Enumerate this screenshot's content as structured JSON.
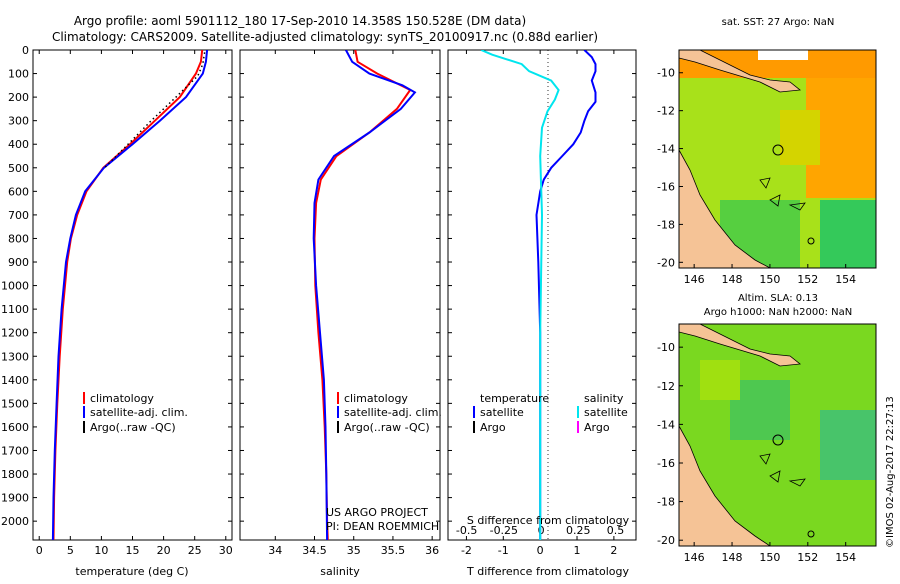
{
  "header": {
    "line1": "Argo profile: aoml 5901112_180 17-Sep-2010 14.358S 150.528E (DM data)",
    "line2": "Climatology: CARS2009. Satellite-adjusted climatology: synTS_20100917.nc (0.88d earlier)"
  },
  "credits": {
    "project": "US ARGO PROJECT",
    "pi": "PI: DEAN ROEMMICH",
    "watermark": "©IMOS 02-Aug-2017 22:27:13"
  },
  "colors": {
    "climatology": "#ff0000",
    "satellite": "#0000ff",
    "argo": "#000000",
    "salinity_satellite": "#00e5ee",
    "salinity_argo": "#ff00ff",
    "land": "#f5c396",
    "sst_warm": "#ff9a00",
    "sst_mid": "#9ae010",
    "sla_green": "#7ad820"
  },
  "depth_ticks": [
    "0",
    "100",
    "200",
    "300",
    "400",
    "500",
    "600",
    "700",
    "800",
    "900",
    "1000",
    "1100",
    "1200",
    "1300",
    "1400",
    "1500",
    "1600",
    "1700",
    "1800",
    "1900",
    "2000"
  ],
  "chart_data": [
    {
      "type": "line",
      "id": "temperature",
      "xlabel": "temperature (deg C)",
      "ylabel": "",
      "xlim": [
        -1,
        31
      ],
      "ylim": [
        2080,
        0
      ],
      "xticks": [
        0,
        5,
        10,
        15,
        20,
        25,
        30
      ],
      "xtick_labels": [
        "0",
        "5",
        "10",
        "15",
        "20",
        "25",
        "30"
      ],
      "legend": [
        {
          "label": "climatology",
          "color": "#ff0000"
        },
        {
          "label": "satellite-adj. clim.",
          "color": "#0000ff"
        },
        {
          "label": "Argo(..raw -QC)",
          "color": "#000000"
        }
      ],
      "series": [
        {
          "name": "climatology",
          "color": "#ff0000",
          "x": [
            26.2,
            26.0,
            25.2,
            22.6,
            18.6,
            14.6,
            10.3,
            7.6,
            6.1,
            5.1,
            4.5,
            3.8,
            3.3,
            2.9,
            2.6,
            2.4,
            2.3
          ],
          "y": [
            0,
            50,
            100,
            200,
            300,
            400,
            500,
            600,
            700,
            800,
            900,
            1100,
            1300,
            1500,
            1700,
            1900,
            2080
          ]
        },
        {
          "name": "satellite-adj. clim.",
          "color": "#0000ff",
          "x": [
            27.0,
            26.8,
            26.3,
            23.6,
            19.4,
            15.0,
            10.4,
            7.4,
            5.9,
            5.0,
            4.3,
            3.6,
            3.1,
            2.8,
            2.5,
            2.3,
            2.2
          ],
          "y": [
            0,
            50,
            100,
            200,
            300,
            400,
            500,
            600,
            700,
            800,
            900,
            1100,
            1300,
            1500,
            1700,
            1900,
            2080
          ]
        },
        {
          "name": "Argo(..raw -QC)",
          "color": "#000000",
          "dotted": true,
          "x": [
            26.6,
            26.3,
            25.5,
            22.0,
            18.0,
            14.3,
            10.5
          ],
          "y": [
            10,
            60,
            110,
            200,
            300,
            400,
            500
          ]
        }
      ]
    },
    {
      "type": "line",
      "id": "salinity",
      "xlabel": "salinity",
      "ylabel": "",
      "xlim": [
        33.55,
        36.1
      ],
      "ylim": [
        2080,
        0
      ],
      "xticks": [
        34,
        34.5,
        35,
        35.5,
        36
      ],
      "xtick_labels": [
        "34",
        "34.5",
        "35",
        "35.5",
        "36"
      ],
      "legend": [
        {
          "label": "climatology",
          "color": "#ff0000"
        },
        {
          "label": "satellite-adj. clim.",
          "color": "#0000ff"
        },
        {
          "label": "Argo(..raw -QC)",
          "color": "#000000"
        }
      ],
      "series": [
        {
          "name": "climatology",
          "color": "#ff0000",
          "x": [
            35.02,
            35.05,
            35.3,
            35.72,
            35.55,
            35.2,
            34.78,
            34.58,
            34.52,
            34.5,
            34.51,
            34.55,
            34.6,
            34.63,
            34.65,
            34.66,
            34.67
          ],
          "y": [
            0,
            50,
            100,
            170,
            250,
            350,
            450,
            550,
            650,
            800,
            1000,
            1200,
            1400,
            1600,
            1800,
            2000,
            2080
          ]
        },
        {
          "name": "satellite-adj. clim.",
          "color": "#0000ff",
          "x": [
            34.9,
            34.98,
            35.2,
            35.62,
            35.78,
            35.6,
            35.2,
            34.75,
            34.55,
            34.5,
            34.49,
            34.52,
            34.57,
            34.62,
            34.64,
            34.65,
            34.66
          ],
          "y": [
            0,
            50,
            100,
            150,
            180,
            250,
            350,
            450,
            550,
            650,
            800,
            1000,
            1200,
            1400,
            1600,
            1800,
            2080
          ]
        }
      ]
    },
    {
      "type": "line",
      "id": "difference",
      "xlabel": "T difference from climatology",
      "x2label": "S difference from climatology",
      "xlim": [
        -2.5,
        2.6
      ],
      "ylim": [
        2080,
        0
      ],
      "xticks": [
        -2,
        -1,
        0,
        1,
        2
      ],
      "xtick_labels": [
        "-2",
        "-1",
        "0",
        "1",
        "2"
      ],
      "x2ticks": [
        -0.5,
        -0.25,
        0,
        0.25,
        0.5
      ],
      "x2tick_labels": [
        "-0.5",
        "-0.25",
        "0",
        "0.25",
        "0.5"
      ],
      "legend_temperature_title": "temperature",
      "legend_salinity_title": "salinity",
      "legend": [
        {
          "label": "satellite",
          "color": "#0000ff",
          "group": "temperature"
        },
        {
          "label": "Argo",
          "color": "#000000",
          "group": "temperature"
        },
        {
          "label": "satellite",
          "color": "#00e5ee",
          "group": "salinity"
        },
        {
          "label": "Argo",
          "color": "#ff00ff",
          "group": "salinity"
        }
      ],
      "series": [
        {
          "name": "temperature satellite",
          "color": "#0000ff",
          "x": [
            1.2,
            1.4,
            1.5,
            1.5,
            1.4,
            1.5,
            1.5,
            1.3,
            1.2,
            1.1,
            0.9,
            0.6,
            0.3,
            0.1,
            0.0,
            -0.1,
            -0.05,
            0.0,
            0.0
          ],
          "y": [
            0,
            30,
            60,
            90,
            130,
            180,
            220,
            260,
            300,
            350,
            400,
            450,
            500,
            550,
            600,
            700,
            900,
            1200,
            2080
          ]
        },
        {
          "name": "salinity satellite",
          "color": "#00e5ee",
          "x": [
            -1.6,
            -1.3,
            -0.9,
            -0.5,
            -0.3,
            0.3,
            0.5,
            0.4,
            0.2,
            0.05,
            0.0,
            0.05,
            0.0,
            0.0
          ],
          "y": [
            0,
            20,
            40,
            60,
            90,
            130,
            170,
            210,
            260,
            330,
            450,
            700,
            1200,
            2080
          ]
        }
      ]
    },
    {
      "type": "heatmap",
      "id": "sst_map",
      "title": "sat. SST: 27 Argo: NaN",
      "xlim": [
        145.2,
        155.6
      ],
      "ylim": [
        -20.3,
        -8.8
      ],
      "xticks": [
        146,
        148,
        150,
        152,
        154
      ],
      "xtick_labels": [
        "146",
        "148",
        "150",
        "152",
        "154"
      ],
      "yticks": [
        -10,
        -12,
        -14,
        -16,
        -18,
        -20
      ],
      "ytick_labels": [
        "-10",
        "-12",
        "-14",
        "-16",
        "-18",
        "-20"
      ],
      "markers": [
        {
          "lon": 150.528,
          "lat": -14.358,
          "kind": "profile"
        },
        {
          "lon": 152.2,
          "lat": -19.1,
          "kind": "small"
        }
      ]
    },
    {
      "type": "heatmap",
      "id": "sla_map",
      "title": "Altim. SLA: 0.13",
      "subtitle": "Argo h1000: NaN h2000: NaN",
      "xlim": [
        145.2,
        155.6
      ],
      "ylim": [
        -20.3,
        -8.8
      ],
      "xticks": [
        146,
        148,
        150,
        152,
        154
      ],
      "xtick_labels": [
        "146",
        "148",
        "150",
        "152",
        "154"
      ],
      "yticks": [
        -10,
        -12,
        -14,
        -16,
        -18,
        -20
      ],
      "ytick_labels": [
        "-10",
        "-12",
        "-14",
        "-16",
        "-18",
        "-20"
      ],
      "markers": [
        {
          "lon": 150.528,
          "lat": -14.358,
          "kind": "profile"
        },
        {
          "lon": 152.2,
          "lat": -19.1,
          "kind": "small"
        }
      ]
    }
  ]
}
